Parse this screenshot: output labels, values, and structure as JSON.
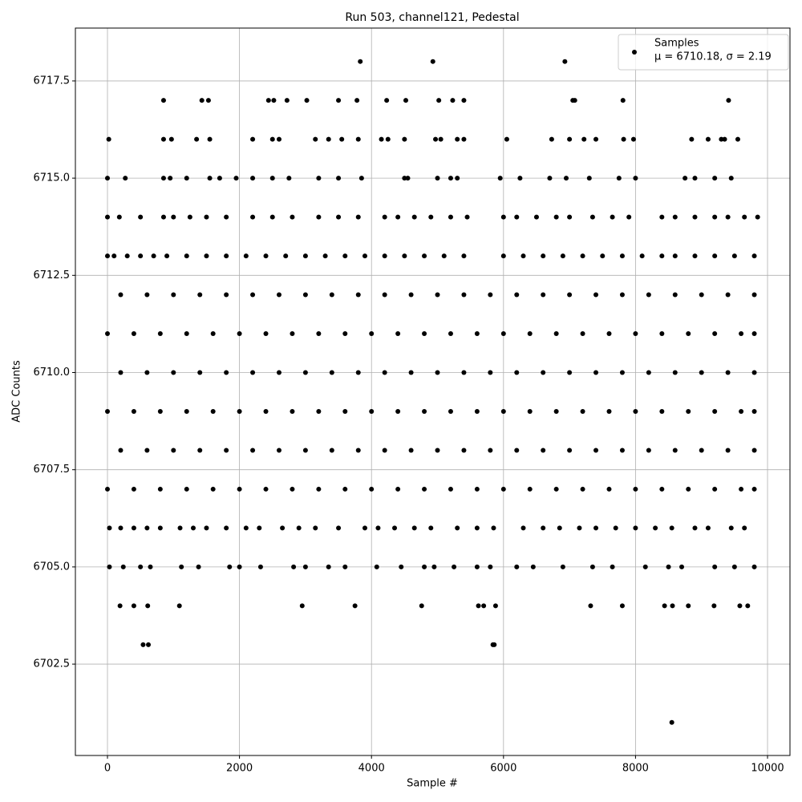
{
  "chart_data": {
    "type": "scatter",
    "title": "Run 503, channel121, Pedestal",
    "x_label": "Sample #",
    "y_label": "ADC Counts",
    "xlim": [
      -486,
      10340
    ],
    "ylim": [
      6700.15,
      6718.86
    ],
    "xticks": [
      0,
      2000,
      4000,
      6000,
      8000,
      10000
    ],
    "yticks": [
      6702.5,
      {
        "value": 6705,
        "label": "6705.0"
      },
      6707.5,
      {
        "value": 6710,
        "label": "6710.0"
      },
      6712.5,
      {
        "value": 6715,
        "label": "6715.0"
      },
      6717.5
    ],
    "grid": true,
    "legend": "upper right",
    "annotation": "μ = 6710.18, σ = 2.19",
    "series": [
      {
        "name": "Samples",
        "color": "#000000",
        "x": [
          8550,
          540,
          620,
          5840,
          5860,
          190,
          400,
          610,
          1090,
          2950,
          3750,
          4760,
          5620,
          5700,
          5880,
          7320,
          7800,
          8440,
          8560,
          8800,
          9190,
          9580,
          9700,
          30,
          240,
          500,
          650,
          1120,
          1380,
          1850,
          2000,
          2320,
          2820,
          3000,
          3350,
          3600,
          4080,
          4450,
          4800,
          4950,
          5250,
          5600,
          5800,
          6200,
          6450,
          6900,
          7350,
          7650,
          8150,
          8500,
          8700,
          9200,
          9500,
          9800,
          30,
          200,
          400,
          600,
          800,
          1100,
          1300,
          1500,
          1800,
          2100,
          2300,
          2650,
          2900,
          3150,
          3500,
          3900,
          4100,
          4350,
          4650,
          4900,
          5300,
          5600,
          5850,
          6300,
          6600,
          6850,
          7150,
          7400,
          7700,
          8000,
          8300,
          8550,
          8900,
          9100,
          9450,
          9650,
          0,
          400,
          800,
          1200,
          1600,
          2000,
          2400,
          2800,
          3200,
          3600,
          4000,
          4400,
          4800,
          5200,
          5600,
          6000,
          6400,
          6800,
          7200,
          7600,
          8000,
          8400,
          8800,
          9200,
          9600,
          9800,
          200,
          600,
          1000,
          1400,
          1800,
          2200,
          2600,
          3000,
          3400,
          3800,
          4200,
          4600,
          5000,
          5400,
          5800,
          6200,
          6600,
          7000,
          7400,
          7800,
          8200,
          8600,
          9000,
          9400,
          9800,
          0,
          400,
          800,
          1200,
          1600,
          2000,
          2400,
          2800,
          3200,
          3600,
          4000,
          4400,
          4800,
          5200,
          5600,
          6000,
          6400,
          6800,
          7200,
          7600,
          8000,
          8400,
          8800,
          9200,
          9600,
          9800,
          200,
          600,
          1000,
          1400,
          1800,
          2200,
          2600,
          3000,
          3400,
          3800,
          4200,
          4600,
          5000,
          5400,
          5800,
          6200,
          6600,
          7000,
          7400,
          7800,
          8200,
          8600,
          9000,
          9400,
          9800,
          0,
          400,
          800,
          1200,
          1600,
          2000,
          2400,
          2800,
          3200,
          3600,
          4000,
          4400,
          4800,
          5200,
          5600,
          6000,
          6400,
          6800,
          7200,
          7600,
          8000,
          8400,
          8800,
          9200,
          9600,
          9800,
          200,
          600,
          1000,
          1400,
          1800,
          2200,
          2600,
          3000,
          3400,
          3800,
          4200,
          4600,
          5000,
          5400,
          5800,
          6200,
          6600,
          7000,
          7400,
          7800,
          8200,
          8600,
          9000,
          9400,
          9800,
          0,
          100,
          300,
          500,
          700,
          900,
          1200,
          1500,
          1800,
          2100,
          2400,
          2700,
          3000,
          3300,
          3600,
          3900,
          4200,
          4500,
          4800,
          5100,
          5400,
          6000,
          6300,
          6600,
          6900,
          7200,
          7500,
          7800,
          8100,
          8400,
          8600,
          8900,
          9200,
          9500,
          9800,
          0,
          180,
          500,
          850,
          1000,
          1250,
          1500,
          1800,
          2200,
          2500,
          2800,
          3200,
          3500,
          3800,
          4200,
          4400,
          4650,
          4900,
          5200,
          5450,
          6000,
          6200,
          6500,
          6800,
          7000,
          7350,
          7650,
          7900,
          8400,
          8600,
          8900,
          9200,
          9400,
          9650,
          9850,
          0,
          270,
          850,
          950,
          1200,
          1550,
          1700,
          1950,
          2200,
          2500,
          2750,
          3200,
          3500,
          3850,
          4500,
          4550,
          5000,
          5200,
          5300,
          5950,
          6250,
          6700,
          6950,
          7300,
          7750,
          8000,
          8750,
          8900,
          9200,
          9450,
          20,
          850,
          970,
          1350,
          1550,
          2200,
          2500,
          2600,
          3150,
          3350,
          3550,
          3800,
          4150,
          4250,
          4500,
          4970,
          5050,
          5300,
          5400,
          6050,
          6730,
          7000,
          7220,
          7400,
          7820,
          7970,
          8850,
          9100,
          9300,
          9350,
          9550,
          850,
          1430,
          1530,
          2440,
          2520,
          2720,
          3020,
          3500,
          3780,
          4230,
          4520,
          5020,
          5230,
          5400,
          7050,
          7080,
          7810,
          9410,
          3830,
          4930,
          6930
        ],
        "y": [
          6701,
          6703,
          6703,
          6703,
          6703,
          6704,
          6704,
          6704,
          6704,
          6704,
          6704,
          6704,
          6704,
          6704,
          6704,
          6704,
          6704,
          6704,
          6704,
          6704,
          6704,
          6704,
          6704,
          6705,
          6705,
          6705,
          6705,
          6705,
          6705,
          6705,
          6705,
          6705,
          6705,
          6705,
          6705,
          6705,
          6705,
          6705,
          6705,
          6705,
          6705,
          6705,
          6705,
          6705,
          6705,
          6705,
          6705,
          6705,
          6705,
          6705,
          6705,
          6705,
          6705,
          6705,
          6706,
          6706,
          6706,
          6706,
          6706,
          6706,
          6706,
          6706,
          6706,
          6706,
          6706,
          6706,
          6706,
          6706,
          6706,
          6706,
          6706,
          6706,
          6706,
          6706,
          6706,
          6706,
          6706,
          6706,
          6706,
          6706,
          6706,
          6706,
          6706,
          6706,
          6706,
          6706,
          6706,
          6706,
          6706,
          6706,
          6707,
          6707,
          6707,
          6707,
          6707,
          6707,
          6707,
          6707,
          6707,
          6707,
          6707,
          6707,
          6707,
          6707,
          6707,
          6707,
          6707,
          6707,
          6707,
          6707,
          6707,
          6707,
          6707,
          6707,
          6707,
          6707,
          6708,
          6708,
          6708,
          6708,
          6708,
          6708,
          6708,
          6708,
          6708,
          6708,
          6708,
          6708,
          6708,
          6708,
          6708,
          6708,
          6708,
          6708,
          6708,
          6708,
          6708,
          6708,
          6708,
          6708,
          6708,
          6709,
          6709,
          6709,
          6709,
          6709,
          6709,
          6709,
          6709,
          6709,
          6709,
          6709,
          6709,
          6709,
          6709,
          6709,
          6709,
          6709,
          6709,
          6709,
          6709,
          6709,
          6709,
          6709,
          6709,
          6709,
          6709,
          6710,
          6710,
          6710,
          6710,
          6710,
          6710,
          6710,
          6710,
          6710,
          6710,
          6710,
          6710,
          6710,
          6710,
          6710,
          6710,
          6710,
          6710,
          6710,
          6710,
          6710,
          6710,
          6710,
          6710,
          6710,
          6711,
          6711,
          6711,
          6711,
          6711,
          6711,
          6711,
          6711,
          6711,
          6711,
          6711,
          6711,
          6711,
          6711,
          6711,
          6711,
          6711,
          6711,
          6711,
          6711,
          6711,
          6711,
          6711,
          6711,
          6711,
          6711,
          6712,
          6712,
          6712,
          6712,
          6712,
          6712,
          6712,
          6712,
          6712,
          6712,
          6712,
          6712,
          6712,
          6712,
          6712,
          6712,
          6712,
          6712,
          6712,
          6712,
          6712,
          6712,
          6712,
          6712,
          6712,
          6713,
          6713,
          6713,
          6713,
          6713,
          6713,
          6713,
          6713,
          6713,
          6713,
          6713,
          6713,
          6713,
          6713,
          6713,
          6713,
          6713,
          6713,
          6713,
          6713,
          6713,
          6713,
          6713,
          6713,
          6713,
          6713,
          6713,
          6713,
          6713,
          6713,
          6713,
          6713,
          6713,
          6713,
          6713,
          6714,
          6714,
          6714,
          6714,
          6714,
          6714,
          6714,
          6714,
          6714,
          6714,
          6714,
          6714,
          6714,
          6714,
          6714,
          6714,
          6714,
          6714,
          6714,
          6714,
          6714,
          6714,
          6714,
          6714,
          6714,
          6714,
          6714,
          6714,
          6714,
          6714,
          6714,
          6714,
          6714,
          6714,
          6714,
          6715,
          6715,
          6715,
          6715,
          6715,
          6715,
          6715,
          6715,
          6715,
          6715,
          6715,
          6715,
          6715,
          6715,
          6715,
          6715,
          6715,
          6715,
          6715,
          6715,
          6715,
          6715,
          6715,
          6715,
          6715,
          6715,
          6715,
          6715,
          6715,
          6715,
          6716,
          6716,
          6716,
          6716,
          6716,
          6716,
          6716,
          6716,
          6716,
          6716,
          6716,
          6716,
          6716,
          6716,
          6716,
          6716,
          6716,
          6716,
          6716,
          6716,
          6716,
          6716,
          6716,
          6716,
          6716,
          6716,
          6716,
          6716,
          6716,
          6716,
          6716,
          6717,
          6717,
          6717,
          6717,
          6717,
          6717,
          6717,
          6717,
          6717,
          6717,
          6717,
          6717,
          6717,
          6717,
          6717,
          6717,
          6717,
          6717,
          6718,
          6718,
          6718
        ]
      }
    ]
  }
}
